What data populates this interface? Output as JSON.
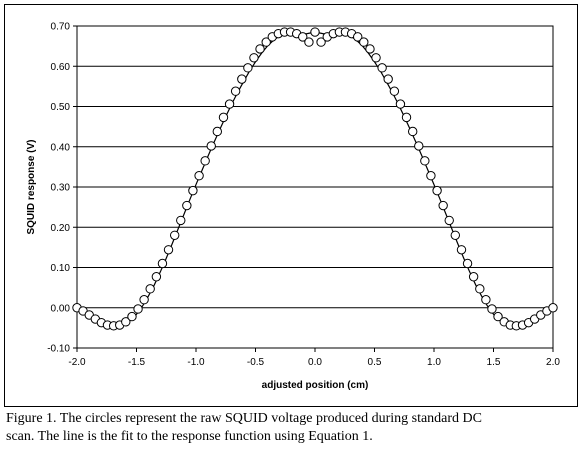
{
  "chart_data": {
    "type": "scatter",
    "xlabel": "adjusted position (cm)",
    "ylabel": "SQUID response (V)",
    "xlim": [
      -2.0,
      2.0
    ],
    "ylim": [
      -0.1,
      0.7
    ],
    "xticks": [
      "-2.0",
      "-1.5",
      "-1.0",
      "-0.5",
      "0.0",
      "0.5",
      "1.0",
      "1.5",
      "2.0"
    ],
    "yticks": [
      "-0.10",
      "0.00",
      "0.10",
      "0.20",
      "0.30",
      "0.40",
      "0.50",
      "0.60",
      "0.70"
    ],
    "grid": "horizontal",
    "series": [
      {
        "style": "open-circles",
        "x": [
          -2.0,
          -1.949,
          -1.897,
          -1.846,
          -1.795,
          -1.744,
          -1.692,
          -1.641,
          -1.59,
          -1.538,
          -1.487,
          -1.436,
          -1.385,
          -1.333,
          -1.282,
          -1.231,
          -1.179,
          -1.128,
          -1.077,
          -1.026,
          -0.974,
          -0.923,
          -0.872,
          -0.821,
          -0.769,
          -0.718,
          -0.667,
          -0.615,
          -0.564,
          -0.513,
          -0.462,
          -0.41,
          -0.359,
          -0.308,
          -0.256,
          -0.205,
          -0.154,
          -0.103,
          -0.051,
          0.0,
          0.051,
          0.103,
          0.154,
          0.205,
          0.256,
          0.308,
          0.359,
          0.41,
          0.462,
          0.513,
          0.564,
          0.615,
          0.667,
          0.718,
          0.769,
          0.821,
          0.872,
          0.923,
          0.974,
          1.026,
          1.077,
          1.128,
          1.179,
          1.231,
          1.282,
          1.333,
          1.385,
          1.436,
          1.487,
          1.538,
          1.59,
          1.641,
          1.692,
          1.744,
          1.795,
          1.846,
          1.897,
          1.949,
          2.0
        ],
        "y": [
          0.0,
          -0.008,
          -0.018,
          -0.028,
          -0.037,
          -0.043,
          -0.045,
          -0.043,
          -0.035,
          -0.022,
          -0.003,
          0.02,
          0.047,
          0.077,
          0.11,
          0.144,
          0.18,
          0.217,
          0.254,
          0.291,
          0.328,
          0.365,
          0.402,
          0.438,
          0.473,
          0.506,
          0.538,
          0.568,
          0.596,
          0.621,
          0.643,
          0.66,
          0.673,
          0.681,
          0.685,
          0.685,
          0.681,
          0.673,
          0.66,
          0.685,
          0.66,
          0.673,
          0.681,
          0.685,
          0.685,
          0.681,
          0.673,
          0.66,
          0.643,
          0.621,
          0.596,
          0.568,
          0.538,
          0.506,
          0.473,
          0.438,
          0.402,
          0.365,
          0.328,
          0.291,
          0.254,
          0.217,
          0.18,
          0.144,
          0.11,
          0.077,
          0.047,
          0.02,
          -0.003,
          -0.022,
          -0.035,
          -0.043,
          -0.045,
          -0.043,
          -0.037,
          -0.028,
          -0.018,
          -0.008,
          0.0
        ]
      },
      {
        "style": "line",
        "x": [
          -2.0,
          -1.95,
          -1.9,
          -1.85,
          -1.8,
          -1.75,
          -1.7,
          -1.65,
          -1.6,
          -1.55,
          -1.5,
          -1.45,
          -1.4,
          -1.35,
          -1.3,
          -1.25,
          -1.2,
          -1.15,
          -1.1,
          -1.05,
          -1.0,
          -0.95,
          -0.9,
          -0.85,
          -0.8,
          -0.75,
          -0.7,
          -0.65,
          -0.6,
          -0.55,
          -0.5,
          -0.45,
          -0.4,
          -0.35,
          -0.3,
          -0.25,
          -0.2,
          -0.15,
          -0.1,
          -0.05,
          0.0,
          0.05,
          0.1,
          0.15,
          0.2,
          0.25,
          0.3,
          0.35,
          0.4,
          0.45,
          0.5,
          0.55,
          0.6,
          0.65,
          0.7,
          0.75,
          0.8,
          0.85,
          0.9,
          0.95,
          1.0,
          1.05,
          1.1,
          1.15,
          1.2,
          1.25,
          1.3,
          1.35,
          1.4,
          1.45,
          1.5,
          1.55,
          1.6,
          1.65,
          1.7,
          1.75,
          1.8,
          1.85,
          1.9,
          1.95,
          2.0
        ],
        "y": [
          0.0,
          -0.008,
          -0.017,
          -0.027,
          -0.035,
          -0.041,
          -0.045,
          -0.045,
          -0.041,
          -0.031,
          -0.016,
          0.004,
          0.029,
          0.057,
          0.089,
          0.123,
          0.159,
          0.196,
          0.233,
          0.27,
          0.306,
          0.341,
          0.376,
          0.41,
          0.443,
          0.475,
          0.506,
          0.535,
          0.562,
          0.588,
          0.611,
          0.632,
          0.65,
          0.664,
          0.675,
          0.682,
          0.685,
          0.684,
          0.679,
          0.682,
          0.685,
          0.682,
          0.679,
          0.684,
          0.685,
          0.682,
          0.675,
          0.664,
          0.65,
          0.632,
          0.611,
          0.588,
          0.562,
          0.535,
          0.506,
          0.475,
          0.443,
          0.41,
          0.376,
          0.341,
          0.306,
          0.27,
          0.233,
          0.196,
          0.159,
          0.123,
          0.089,
          0.057,
          0.029,
          0.004,
          -0.016,
          -0.031,
          -0.041,
          -0.045,
          -0.045,
          -0.041,
          -0.035,
          -0.027,
          -0.017,
          -0.008,
          0.0
        ]
      }
    ]
  },
  "caption": {
    "line1": "Figure 1.  The circles represent the raw SQUID voltage produced during standard DC",
    "line2": "scan.  The line is the fit to the response function using Equation 1."
  }
}
